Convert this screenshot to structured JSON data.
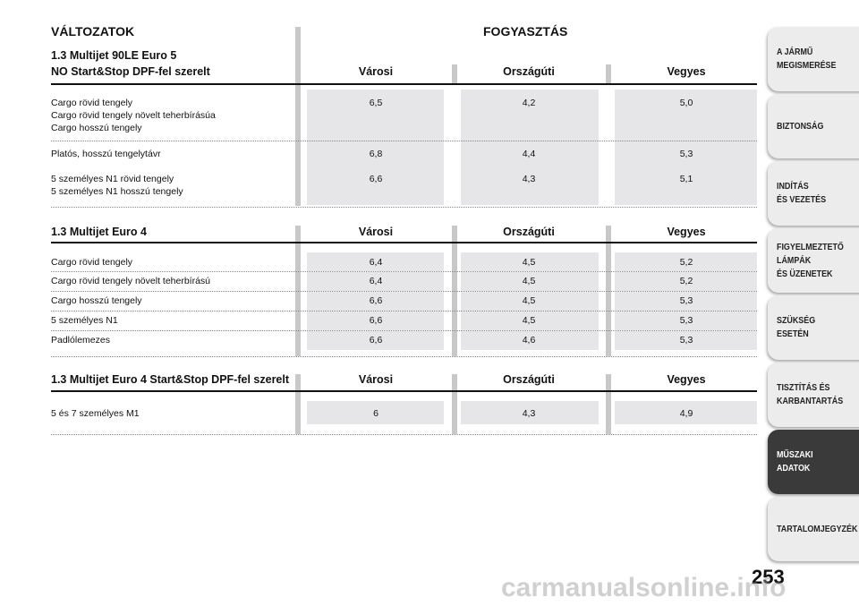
{
  "header": {
    "left": "VÁLTOZATOK",
    "right": "FOGYASZTÁS"
  },
  "sections": [
    {
      "title": [
        "1.3 Multijet 90LE Euro 5",
        "NO Start&Stop DPF-fel szerelt"
      ],
      "columns": [
        "Városi",
        "Országúti",
        "Vegyes"
      ],
      "groups": [
        {
          "labels": [
            "Cargo rövid tengely",
            "Cargo rövid tengely növelt teherbírásúa",
            "Cargo hosszú tengely"
          ],
          "values": [
            "6,5",
            "4,2",
            "5,0"
          ]
        },
        {
          "labels": [
            "Platós, hosszú tengelytávr"
          ],
          "values": [
            "6,8",
            "4,4",
            "5,3"
          ]
        },
        {
          "labels": [
            "5 személyes N1 rövid tengely",
            "5 személyes N1 hosszú tengely"
          ],
          "values": [
            "6,6",
            "4,3",
            "5,1"
          ]
        }
      ]
    },
    {
      "title": [
        "1.3 Multijet Euro 4"
      ],
      "columns": [
        "Városi",
        "Országúti",
        "Vegyes"
      ],
      "groups": [
        {
          "labels": [
            "Cargo rövid tengely"
          ],
          "values": [
            "6,4",
            "4,5",
            "5,2"
          ]
        },
        {
          "labels": [
            "Cargo rövid tengely növelt teherbírású"
          ],
          "values": [
            "6,4",
            "4,5",
            "5,2"
          ]
        },
        {
          "labels": [
            "Cargo hosszú tengely"
          ],
          "values": [
            "6,6",
            "4,5",
            "5,3"
          ]
        },
        {
          "labels": [
            "5 személyes N1"
          ],
          "values": [
            "6,6",
            "4,5",
            "5,3"
          ]
        },
        {
          "labels": [
            "Padlólemezes"
          ],
          "values": [
            "6,6",
            "4,6",
            "5,3"
          ]
        }
      ]
    },
    {
      "title": [
        "1.3 Multijet Euro 4 Start&Stop DPF-fel szerelt"
      ],
      "columns": [
        "Városi",
        "Országúti",
        "Vegyes"
      ],
      "groups": [
        {
          "labels": [
            "5 és 7 személyes M1"
          ],
          "values": [
            "6",
            "4,3",
            "4,9"
          ]
        }
      ]
    }
  ],
  "sidebar": {
    "tabs": [
      {
        "lines": [
          "A JÁRMŰ",
          "MEGISMERÉSE"
        ]
      },
      {
        "lines": [
          "BIZTONSÁG"
        ]
      },
      {
        "lines": [
          "INDÍTÁS",
          "ÉS VEZETÉS"
        ]
      },
      {
        "lines": [
          "FIGYELMEZTETŐ",
          "LÁMPÁK",
          "ÉS ÜZENETEK"
        ]
      },
      {
        "lines": [
          "SZÜKSÉG",
          "ESETÉN"
        ]
      },
      {
        "lines": [
          "TISZTÍTÁS ÉS",
          "KARBANTARTÁS"
        ]
      },
      {
        "lines": [
          "MŰSZAKI",
          "ADATOK"
        ],
        "active": true
      },
      {
        "lines": [
          "TARTALOMJEGYZÉK"
        ]
      }
    ]
  },
  "page_number": "253",
  "watermark": "carmanualsonline.info"
}
